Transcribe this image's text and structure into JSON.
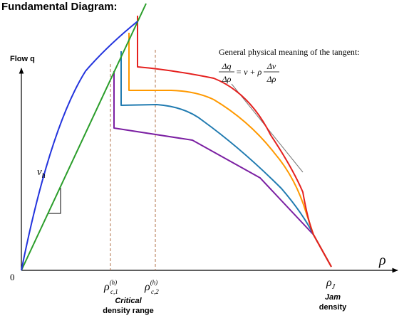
{
  "title": "Fundamental Diagram:",
  "y_axis_label": "Flow q",
  "x_axis_symbol": "ρ",
  "origin_label": "0",
  "wave_speed_label": "v",
  "wave_speed_subscript": "h",
  "tangent_note": {
    "heading": "General physical meaning of the tangent:",
    "numerator_left": "Δq",
    "denominator_left": "Δρ",
    "middle": "= v + ρ",
    "numerator_right": "Δv",
    "denominator_right": "Δρ"
  },
  "critical_1": {
    "symbol": "ρ",
    "sup": "(h)",
    "sub": "c,1"
  },
  "critical_2": {
    "symbol": "ρ",
    "sup": "(h)",
    "sub": "c,2"
  },
  "critical_caption": [
    "Critical",
    "density range"
  ],
  "jam": {
    "symbol": "ρ",
    "sub": "J"
  },
  "jam_caption": [
    "Jam",
    "density"
  ]
}
